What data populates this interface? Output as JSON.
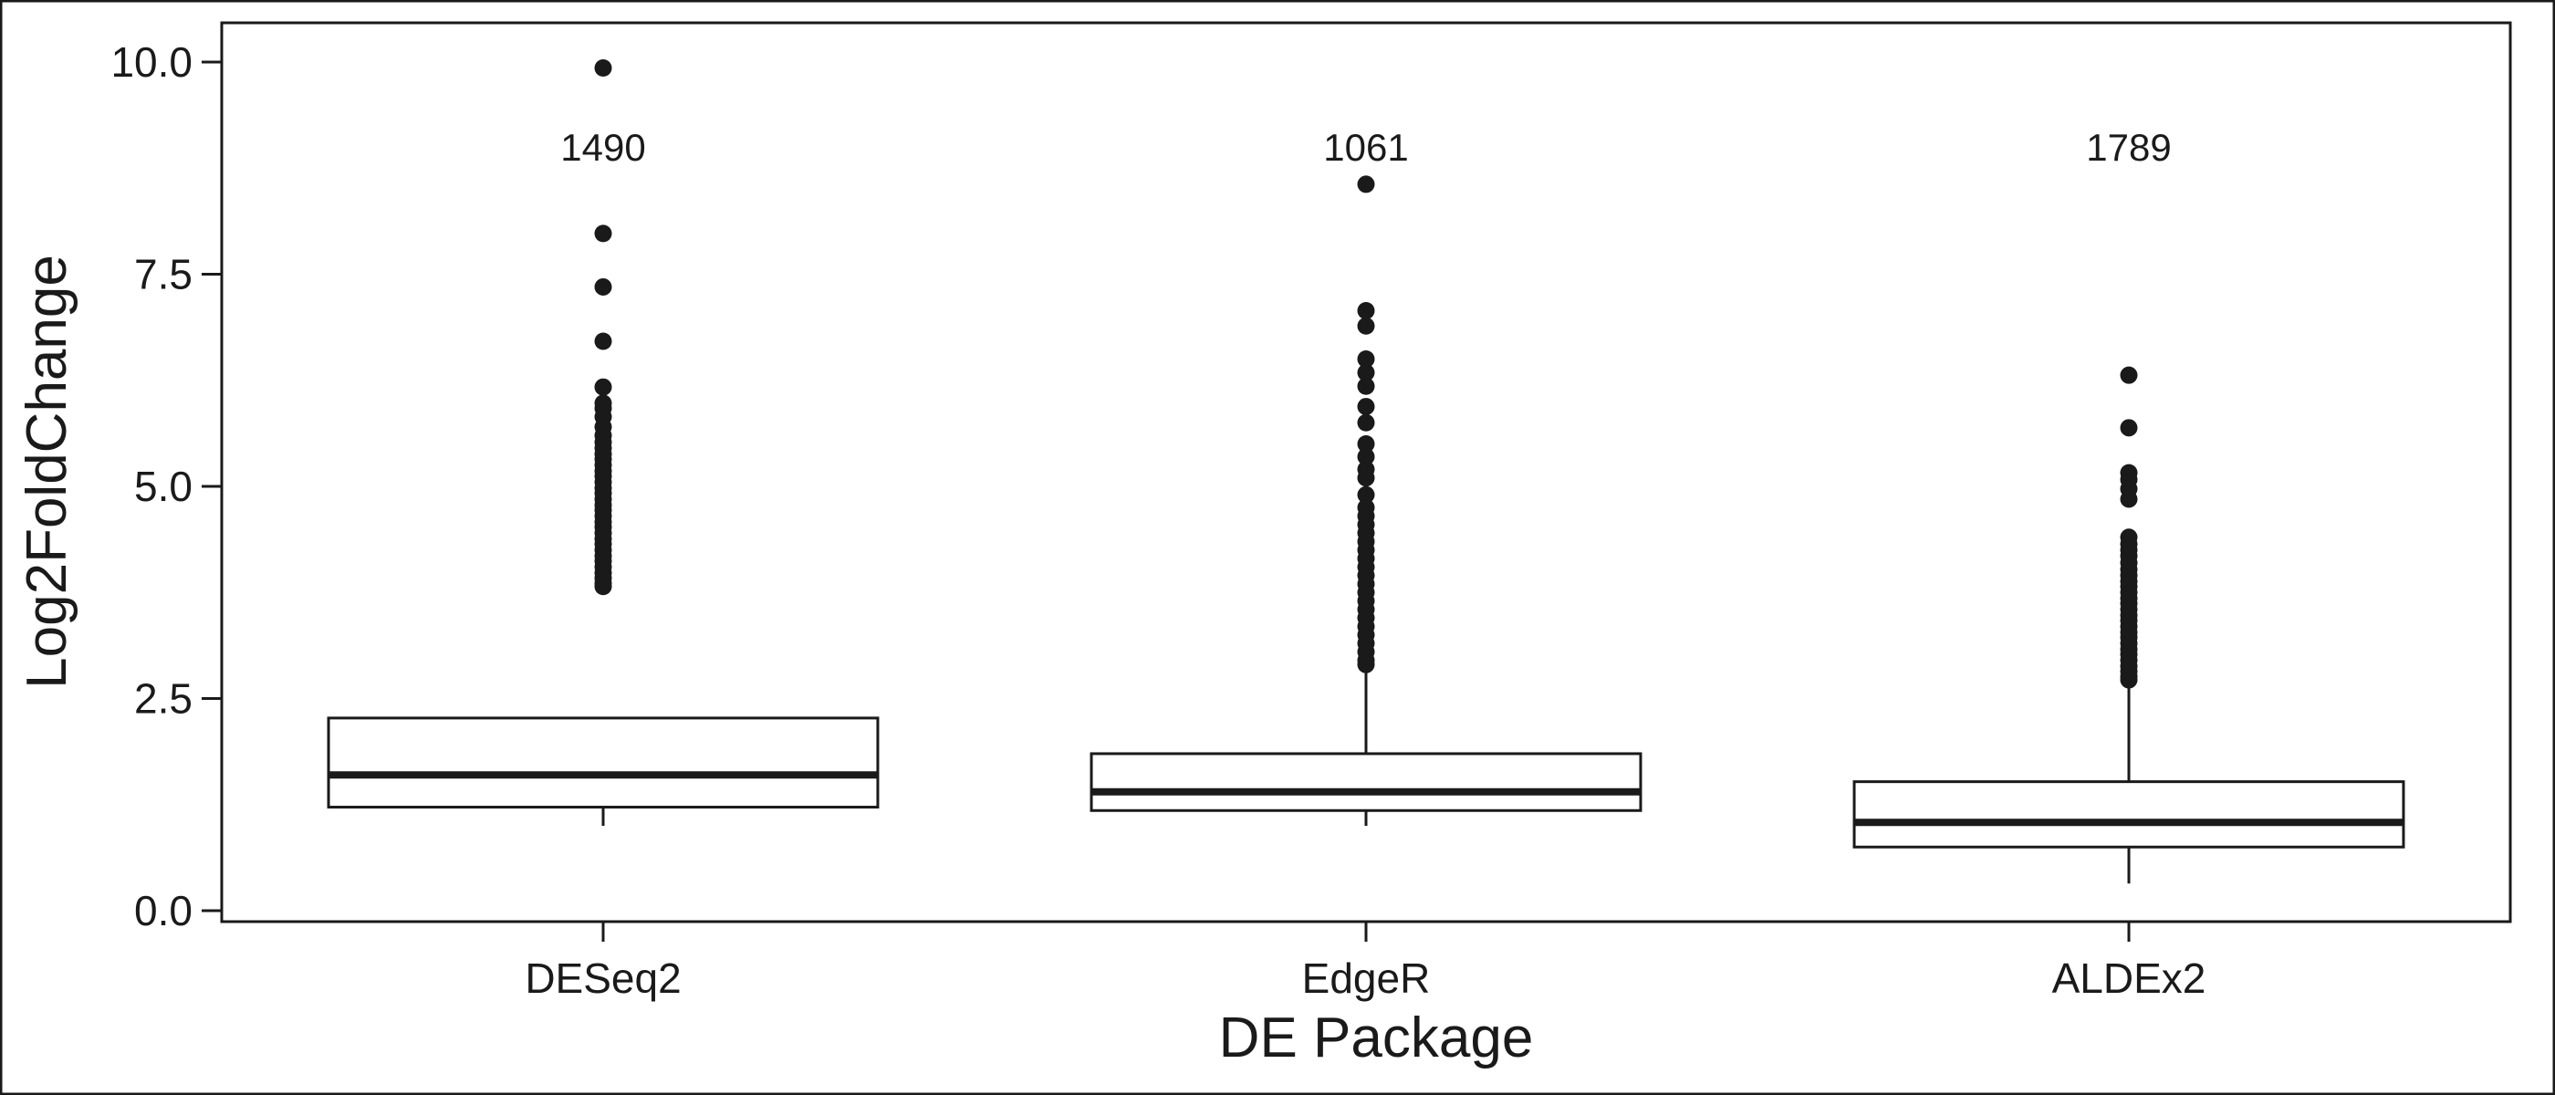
{
  "chart_data": {
    "type": "boxplot",
    "title": "",
    "xlabel": "DE Package",
    "ylabel": "Log2FoldChange",
    "ylim": [
      0,
      10.5
    ],
    "yticks": [
      0.0,
      2.5,
      5.0,
      7.5,
      10.0
    ],
    "ytick_labels": [
      "0.0",
      "2.5",
      "5.0",
      "7.5",
      "10.0"
    ],
    "grid": false,
    "legend": "none",
    "categories": [
      "DESeq2",
      "EdgeR",
      "ALDEx2"
    ],
    "count_labels": [
      "1490",
      "1061",
      "1789"
    ],
    "count_label_y": 9.0,
    "boxes": [
      {
        "name": "DESeq2",
        "whisker_low": 1.0,
        "q1": 1.22,
        "median": 1.6,
        "q3": 2.27,
        "whisker_high": 2.27,
        "outliers": [
          9.93,
          7.98,
          7.35,
          6.71,
          6.17,
          5.98,
          5.92,
          5.82,
          5.7,
          5.6,
          5.52,
          5.45,
          5.38,
          5.32,
          5.25,
          5.18,
          5.12,
          5.05,
          4.98,
          4.92,
          4.85,
          4.78,
          4.72,
          4.65,
          4.58,
          4.52,
          4.45,
          4.38,
          4.32,
          4.25,
          4.18,
          4.12,
          4.05,
          3.98,
          3.92,
          3.86,
          3.82
        ]
      },
      {
        "name": "EdgeR",
        "whisker_low": 1.0,
        "q1": 1.18,
        "median": 1.4,
        "q3": 1.85,
        "whisker_high": 2.85,
        "outliers": [
          8.56,
          7.07,
          6.89,
          6.5,
          6.34,
          6.18,
          5.94,
          5.75,
          5.5,
          5.35,
          5.2,
          5.1,
          4.9,
          4.75,
          4.65,
          4.55,
          4.45,
          4.35,
          4.25,
          4.15,
          4.05,
          3.95,
          3.85,
          3.75,
          3.65,
          3.55,
          3.45,
          3.35,
          3.25,
          3.15,
          3.05,
          2.95,
          2.9
        ]
      },
      {
        "name": "ALDEx2",
        "whisker_low": 0.32,
        "q1": 0.75,
        "median": 1.04,
        "q3": 1.52,
        "whisker_high": 2.7,
        "outliers": [
          6.31,
          5.69,
          5.16,
          5.08,
          4.97,
          4.85,
          4.4,
          4.32,
          4.25,
          4.18,
          4.1,
          4.02,
          3.95,
          3.88,
          3.82,
          3.75,
          3.68,
          3.62,
          3.55,
          3.48,
          3.42,
          3.35,
          3.28,
          3.22,
          3.15,
          3.08,
          3.02,
          2.95,
          2.88,
          2.82,
          2.76,
          2.72
        ]
      }
    ]
  }
}
